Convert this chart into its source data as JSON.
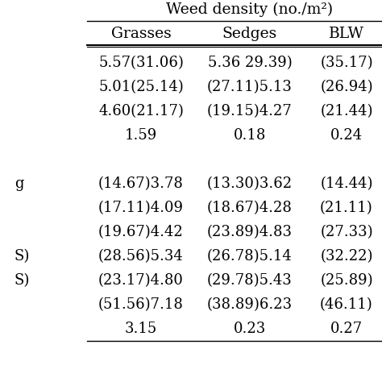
{
  "title": "Weed density (no./m²)",
  "col_headers": [
    "Grasses",
    "Sedges",
    "BLW"
  ],
  "rows": [
    [
      "5.57(31.06)",
      "5.36 29.39)",
      "(35.17)"
    ],
    [
      "5.01(25.14)",
      "(27.11)5.13",
      "(26.94)"
    ],
    [
      "4.60(21.17)",
      "(19.15)4.27",
      "(21.44)"
    ],
    [
      "1.59",
      "0.18",
      "0.24"
    ],
    [
      "",
      "",
      ""
    ],
    [
      "(14.67)3.78",
      "(13.30)3.62",
      "(14.44)"
    ],
    [
      "(17.11)4.09",
      "(18.67)4.28",
      "(21.11)"
    ],
    [
      "(19.67)4.42",
      "(23.89)4.83",
      "(27.33)"
    ],
    [
      "(28.56)5.34",
      "(26.78)5.14",
      "(32.22)"
    ],
    [
      "(23.17)4.80",
      "(29.78)5.43",
      "(25.89)"
    ],
    [
      "(51.56)7.18",
      "(38.89)6.23",
      "(46.11)"
    ],
    [
      "3.15",
      "0.23",
      "0.27"
    ]
  ],
  "left_labels": [
    "",
    "",
    "",
    "",
    "",
    "g",
    "",
    "",
    "S)",
    "S)",
    "",
    ""
  ],
  "bg_color": "#ffffff",
  "text_color": "#000000",
  "font_size": 13,
  "header_font_size": 13.5,
  "title_font_size": 13.5
}
